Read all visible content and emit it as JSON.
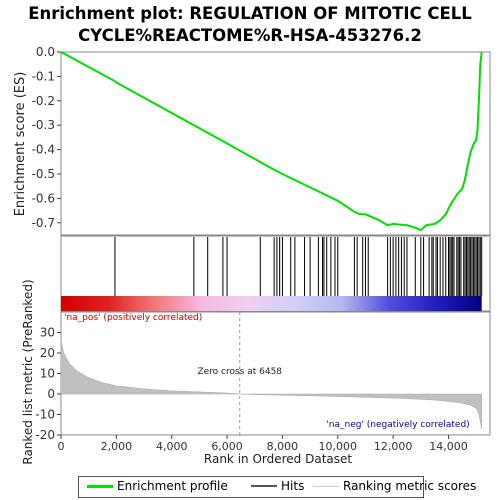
{
  "title_line1": "Enrichment plot: REGULATION OF MITOTIC CELL",
  "title_line2": "CYCLE%REACTOME%R-HSA-453276.2",
  "chart_data": {
    "type": "line",
    "ylabel_top": "Enrichment score (ES)",
    "ylabel_bottom": "Ranked list metric (PreRanked)",
    "xlabel": "Rank in Ordered Dataset",
    "x_ticks": [
      0,
      2000,
      4000,
      6000,
      8000,
      10000,
      12000,
      14000
    ],
    "x_tick_labels": [
      "0",
      "2,000",
      "4,000",
      "6,000",
      "8,000",
      "10,000",
      "12,000",
      "14,000"
    ],
    "xlim": [
      0,
      15500
    ],
    "es_ylim": [
      -0.75,
      0.0
    ],
    "es_ticks": [
      0.0,
      -0.1,
      -0.2,
      -0.3,
      -0.4,
      -0.5,
      -0.6,
      -0.7
    ],
    "es_tick_labels": [
      "0.0",
      "-0.1",
      "-0.2",
      "-0.3",
      "-0.4",
      "-0.5",
      "-0.6",
      "-0.7"
    ],
    "metric_ylim": [
      -20,
      40
    ],
    "metric_ticks": [
      30,
      20,
      10,
      0,
      -10,
      -20
    ],
    "metric_tick_labels": [
      "30",
      "20",
      "10",
      "0",
      "-10",
      "-20"
    ],
    "enrichment_profile": {
      "x": [
        0,
        1950,
        2000,
        4000,
        6000,
        7500,
        8000,
        9000,
        10000,
        10600,
        10800,
        11000,
        11200,
        11500,
        11800,
        12000,
        12500,
        12800,
        13000,
        13200,
        13500,
        13700,
        13900,
        14100,
        14300,
        14500,
        14600,
        14700,
        14800,
        14900,
        15000,
        15050,
        15100,
        15150,
        15200
      ],
      "y": [
        0.0,
        -0.12,
        -0.125,
        -0.25,
        -0.375,
        -0.47,
        -0.5,
        -0.555,
        -0.61,
        -0.655,
        -0.665,
        -0.665,
        -0.675,
        -0.69,
        -0.71,
        -0.705,
        -0.71,
        -0.72,
        -0.73,
        -0.71,
        -0.705,
        -0.69,
        -0.665,
        -0.62,
        -0.585,
        -0.56,
        -0.52,
        -0.46,
        -0.41,
        -0.38,
        -0.36,
        -0.32,
        -0.2,
        -0.05,
        0.0
      ]
    },
    "hits": [
      1950,
      4800,
      5300,
      5850,
      6000,
      7200,
      7700,
      7800,
      7900,
      8000,
      8300,
      8450,
      8800,
      9000,
      9300,
      9450,
      9500,
      9600,
      9750,
      9900,
      10000,
      10600,
      10700,
      10900,
      11000,
      11100,
      11800,
      11900,
      12000,
      12100,
      12200,
      12300,
      12400,
      12500,
      12800,
      13000,
      13100,
      13300,
      13400,
      13450,
      13550,
      13600,
      13700,
      13800,
      13900,
      14000,
      14050,
      14100,
      14150,
      14200,
      14300,
      14350,
      14400,
      14450,
      14550,
      14600,
      14650,
      14700,
      14750,
      14800,
      14850,
      14900,
      14950,
      15000,
      15050,
      15100,
      15150,
      15200
    ],
    "metric_profile": {
      "x": [
        0,
        100,
        300,
        600,
        1000,
        1500,
        2000,
        3000,
        4000,
        5000,
        6000,
        6458,
        7000,
        8000,
        9000,
        10000,
        11000,
        12000,
        13000,
        13500,
        14000,
        14500,
        14800,
        15000,
        15100,
        15200
      ],
      "y": [
        27,
        20,
        15,
        11,
        8,
        5.5,
        4,
        2.5,
        1.5,
        1,
        0.5,
        0,
        -0.3,
        -0.6,
        -0.9,
        -1.2,
        -1.6,
        -2,
        -2.6,
        -3,
        -3.6,
        -4.5,
        -5.5,
        -7,
        -10,
        -17
      ]
    },
    "heatmap_stops": [
      "#d40000",
      "#e02020",
      "#f07878",
      "#f8b8e0",
      "#f0d0f0",
      "#d0d0f8",
      "#b8b8f0",
      "#5050e0",
      "#2020c0",
      "#000080"
    ],
    "zero_cross_label": "Zero cross at 6458",
    "zero_cross_x": 6458,
    "pos_label": "'na_pos' (positively correlated)",
    "neg_label": "'na_neg' (negatively correlated)",
    "colors": {
      "profile": "#00dd00",
      "hits": "#000000",
      "metric_fill": "#c0c0c0",
      "pos_text": "#cc0000",
      "neg_text": "#0000aa",
      "zero_line": "#999999"
    }
  },
  "legend": {
    "profile": "Enrichment profile",
    "hits": "Hits",
    "metric": "Ranking metric scores"
  }
}
